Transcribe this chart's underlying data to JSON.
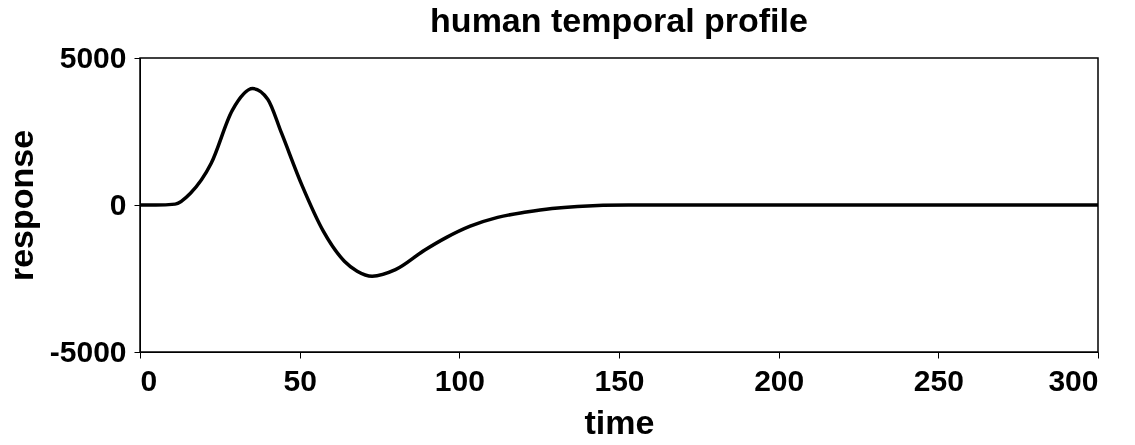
{
  "chart_data": {
    "type": "line",
    "title": "human temporal profile",
    "xlabel": "time",
    "ylabel": "response",
    "x": [
      0,
      5,
      11,
      15.8,
      22.3,
      28.9,
      35.3,
      40,
      44.3,
      50.8,
      57.4,
      64,
      68,
      72.7,
      80,
      89.2,
      96,
      103.4,
      112,
      121,
      129,
      137,
      153,
      200,
      250,
      300
    ],
    "series": [
      {
        "color": "#000000",
        "values": [
          0,
          0,
          30,
          400,
          1420,
          3220,
          3960,
          3600,
          2450,
          650,
          -890,
          -1910,
          -2250,
          -2420,
          -2200,
          -1530,
          -1100,
          -720,
          -420,
          -240,
          -120,
          -50,
          0,
          0,
          0,
          0
        ]
      }
    ],
    "xlim": [
      0,
      300
    ],
    "xticks": [
      0,
      50,
      100,
      150,
      200,
      250,
      300
    ],
    "ylim": [
      -5000,
      5000
    ],
    "yticks": [
      -5000,
      0,
      5000
    ],
    "grid": false,
    "marker": "none",
    "line_style": "solid"
  }
}
